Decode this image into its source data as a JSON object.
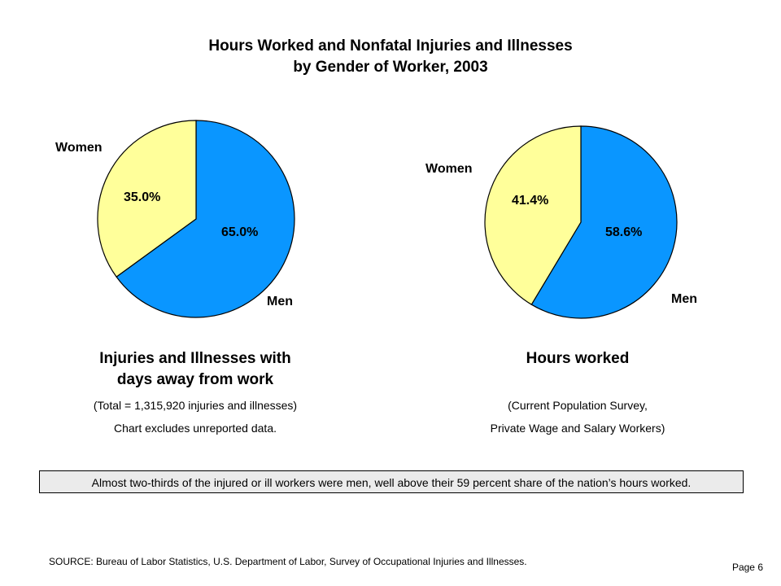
{
  "title_line1": "Hours Worked and Nonfatal Injuries and Illnesses",
  "title_line2": "by Gender of Worker, 2003",
  "colors": {
    "men": "#0a96ff",
    "women": "#ffff9a",
    "stroke": "#000000"
  },
  "chart_data": [
    {
      "type": "pie",
      "categories": [
        "Men",
        "Women"
      ],
      "values": [
        65.0,
        35.0
      ],
      "value_labels": [
        "65.0%",
        "35.0%"
      ],
      "title": "Injuries and Illnesses with days away from work",
      "title_lines": [
        "Injuries and Illnesses with",
        "days away from work"
      ],
      "notes": [
        "(Total = 1,315,920 injuries and illnesses)",
        "Chart excludes unreported data."
      ]
    },
    {
      "type": "pie",
      "categories": [
        "Men",
        "Women"
      ],
      "values": [
        58.6,
        41.4
      ],
      "value_labels": [
        "58.6%",
        "41.4%"
      ],
      "title": "Hours worked",
      "title_lines": [
        "Hours worked"
      ],
      "notes": [
        "(Current Population Survey,",
        "Private Wage and Salary Workers)"
      ]
    }
  ],
  "callout": "Almost two-thirds of the injured or ill workers were men, well above their 59 percent share of the nation’s hours worked.",
  "source": "SOURCE:   Bureau of Labor Statistics, U.S. Department of Labor, Survey of Occupational Injuries and Illnesses.",
  "page_label": "Page 6"
}
